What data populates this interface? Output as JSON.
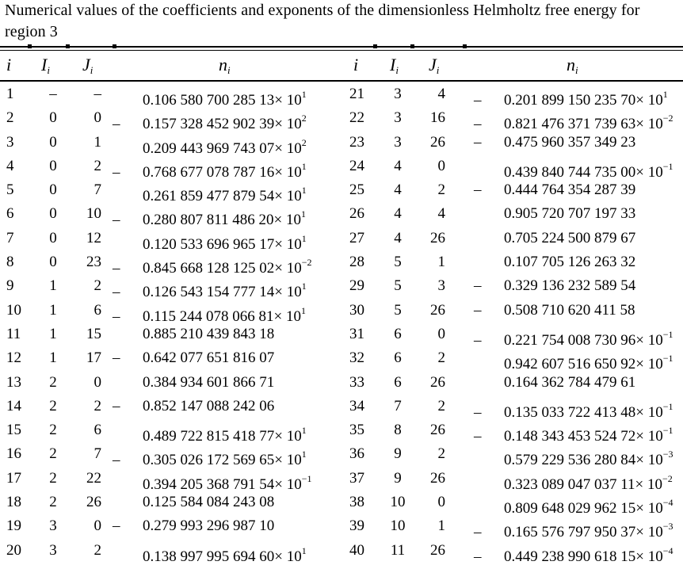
{
  "caption": "Numerical values of the coefficients and exponents of the dimensionless Helmholtz free energy for region 3",
  "headers": {
    "i": "i",
    "I": "I",
    "I_sub": "i",
    "J": "J",
    "J_sub": "i",
    "n": "n",
    "n_sub": "i"
  },
  "rows": [
    {
      "i": "1",
      "I": "–",
      "J": "–",
      "sign": "",
      "mant": "0.106 580 700 285 13",
      "exp": "1",
      "i2": "21",
      "I2": "3",
      "J2": "4",
      "sign2": "–",
      "mant2": "0.201 899 150 235 70",
      "exp2": "1"
    },
    {
      "i": "2",
      "I": "0",
      "J": "0",
      "sign": "–",
      "mant": "0.157 328 452 902 39",
      "exp": "2",
      "i2": "22",
      "I2": "3",
      "J2": "16",
      "sign2": "–",
      "mant2": "0.821 476 371 739 63",
      "exp2": "−2"
    },
    {
      "i": "3",
      "I": "0",
      "J": "1",
      "sign": "",
      "mant": "0.209 443 969 743 07",
      "exp": "2",
      "i2": "23",
      "I2": "3",
      "J2": "26",
      "sign2": "–",
      "mant2": "0.475 960 357 349 23",
      "exp2": ""
    },
    {
      "i": "4",
      "I": "0",
      "J": "2",
      "sign": "–",
      "mant": "0.768 677 078 787 16",
      "exp": "1",
      "i2": "24",
      "I2": "4",
      "J2": "0",
      "sign2": "",
      "mant2": "0.439 840 744 735 00",
      "exp2": "−1"
    },
    {
      "i": "5",
      "I": "0",
      "J": "7",
      "sign": "",
      "mant": "0.261 859 477 879 54",
      "exp": "1",
      "i2": "25",
      "I2": "4",
      "J2": "2",
      "sign2": "–",
      "mant2": "0.444 764 354 287 39",
      "exp2": ""
    },
    {
      "i": "6",
      "I": "0",
      "J": "10",
      "sign": "–",
      "mant": "0.280 807 811 486 20",
      "exp": "1",
      "i2": "26",
      "I2": "4",
      "J2": "4",
      "sign2": "",
      "mant2": "0.905 720 707 197 33",
      "exp2": ""
    },
    {
      "i": "7",
      "I": "0",
      "J": "12",
      "sign": "",
      "mant": "0.120 533 696 965 17",
      "exp": "1",
      "i2": "27",
      "I2": "4",
      "J2": "26",
      "sign2": "",
      "mant2": "0.705 224 500 879 67",
      "exp2": ""
    },
    {
      "i": "8",
      "I": "0",
      "J": "23",
      "sign": "–",
      "mant": "0.845 668 128 125 02",
      "exp": "−2",
      "i2": "28",
      "I2": "5",
      "J2": "1",
      "sign2": "",
      "mant2": "0.107 705 126 263 32",
      "exp2": ""
    },
    {
      "i": "9",
      "I": "1",
      "J": "2",
      "sign": "–",
      "mant": "0.126 543 154 777 14",
      "exp": "1",
      "i2": "29",
      "I2": "5",
      "J2": "3",
      "sign2": "–",
      "mant2": "0.329 136 232 589 54",
      "exp2": ""
    },
    {
      "i": "10",
      "I": "1",
      "J": "6",
      "sign": "–",
      "mant": "0.115 244 078 066 81",
      "exp": "1",
      "i2": "30",
      "I2": "5",
      "J2": "26",
      "sign2": "–",
      "mant2": "0.508 710 620 411 58",
      "exp2": ""
    },
    {
      "i": "11",
      "I": "1",
      "J": "15",
      "sign": "",
      "mant": "0.885 210 439 843 18",
      "exp": "",
      "i2": "31",
      "I2": "6",
      "J2": "0",
      "sign2": "–",
      "mant2": "0.221 754 008 730 96",
      "exp2": "−1"
    },
    {
      "i": "12",
      "I": "1",
      "J": "17",
      "sign": "–",
      "mant": "0.642 077 651 816 07",
      "exp": "",
      "i2": "32",
      "I2": "6",
      "J2": "2",
      "sign2": "",
      "mant2": "0.942 607 516 650 92",
      "exp2": "−1"
    },
    {
      "i": "13",
      "I": "2",
      "J": "0",
      "sign": "",
      "mant": "0.384 934 601 866 71",
      "exp": "",
      "i2": "33",
      "I2": "6",
      "J2": "26",
      "sign2": "",
      "mant2": "0.164 362 784 479 61",
      "exp2": ""
    },
    {
      "i": "14",
      "I": "2",
      "J": "2",
      "sign": "–",
      "mant": "0.852 147 088 242 06",
      "exp": "",
      "i2": "34",
      "I2": "7",
      "J2": "2",
      "sign2": "–",
      "mant2": "0.135 033 722 413 48",
      "exp2": "−1"
    },
    {
      "i": "15",
      "I": "2",
      "J": "6",
      "sign": "",
      "mant": "0.489 722 815 418 77",
      "exp": "1",
      "i2": "35",
      "I2": "8",
      "J2": "26",
      "sign2": "–",
      "mant2": "0.148 343 453 524 72",
      "exp2": "−1"
    },
    {
      "i": "16",
      "I": "2",
      "J": "7",
      "sign": "–",
      "mant": "0.305 026 172 569 65",
      "exp": "1",
      "i2": "36",
      "I2": "9",
      "J2": "2",
      "sign2": "",
      "mant2": "0.579 229 536 280 84",
      "exp2": "−3"
    },
    {
      "i": "17",
      "I": "2",
      "J": "22",
      "sign": "",
      "mant": "0.394 205 368 791 54",
      "exp": "−1",
      "i2": "37",
      "I2": "9",
      "J2": "26",
      "sign2": "",
      "mant2": "0.323 089 047 037 11",
      "exp2": "−2"
    },
    {
      "i": "18",
      "I": "2",
      "J": "26",
      "sign": "",
      "mant": "0.125 584 084 243 08",
      "exp": "",
      "i2": "38",
      "I2": "10",
      "J2": "0",
      "sign2": "",
      "mant2": "0.809 648 029 962 15",
      "exp2": "−4"
    },
    {
      "i": "19",
      "I": "3",
      "J": "0",
      "sign": "–",
      "mant": "0.279 993 296 987 10",
      "exp": "",
      "i2": "39",
      "I2": "10",
      "J2": "1",
      "sign2": "–",
      "mant2": "0.165 576 797 950 37",
      "exp2": "−3"
    },
    {
      "i": "20",
      "I": "3",
      "J": "2",
      "sign": "",
      "mant": "0.138 997 995 694 60",
      "exp": "1",
      "i2": "40",
      "I2": "11",
      "J2": "26",
      "sign2": "–",
      "mant2": "0.449 238 990 618 15",
      "exp2": "−4"
    }
  ]
}
